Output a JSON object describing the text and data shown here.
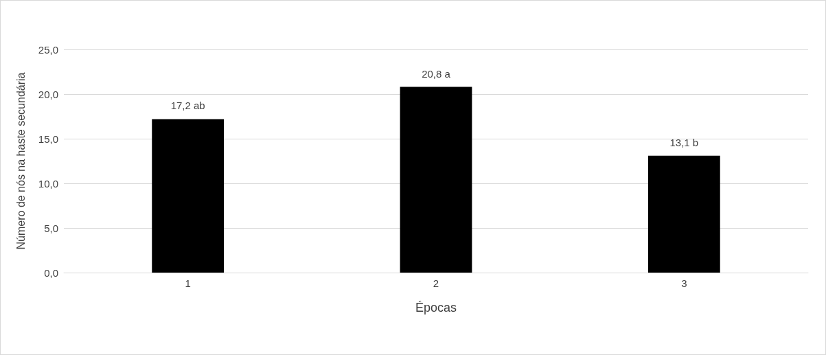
{
  "chart_data": {
    "type": "bar",
    "xlabel": "Épocas",
    "ylabel": "Número de nós na haste secundária",
    "categories": [
      "1",
      "2",
      "3"
    ],
    "values": [
      17.2,
      20.8,
      13.1
    ],
    "value_labels": [
      "17,2 ab",
      "20,8 a",
      "13,1 b"
    ],
    "color": "#000000",
    "ylim": [
      0,
      25
    ],
    "yticks": [
      {
        "value": 0,
        "label": "0,0"
      },
      {
        "value": 5,
        "label": "5,0"
      },
      {
        "value": 10,
        "label": "10,0"
      },
      {
        "value": 15,
        "label": "15,0"
      },
      {
        "value": 20,
        "label": "20,0"
      },
      {
        "value": 25,
        "label": "25,0"
      }
    ],
    "grid": "y"
  }
}
